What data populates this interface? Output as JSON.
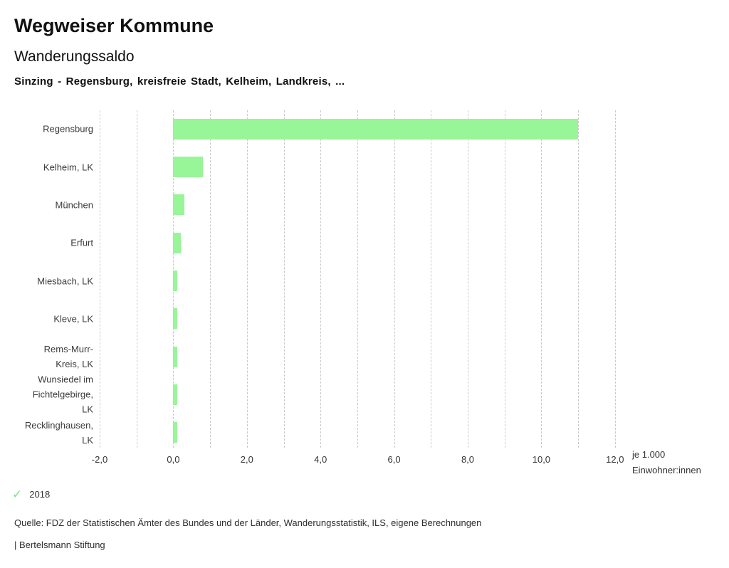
{
  "header": {
    "title": "Wegweiser Kommune",
    "subtitle": "Wanderungssaldo",
    "selection": "Sinzing - Regensburg, kreisfreie Stadt, Kelheim, Landkreis, ..."
  },
  "chart_data": {
    "type": "bar",
    "orientation": "horizontal",
    "title": "Wanderungssaldo",
    "categories": [
      "Regensburg",
      "Kelheim, LK",
      "München",
      "Erfurt",
      "Miesbach, LK",
      "Kleve, LK",
      "Rems-Murr-Kreis, LK",
      "Wunsiedel im Fichtelgebirge, LK",
      "Recklinghausen, LK"
    ],
    "category_lines": [
      [
        "Regensburg"
      ],
      [
        "Kelheim, LK"
      ],
      [
        "München"
      ],
      [
        "Erfurt"
      ],
      [
        "Miesbach, LK"
      ],
      [
        "Kleve, LK"
      ],
      [
        "Rems-Murr-",
        "Kreis, LK"
      ],
      [
        "Wunsiedel im",
        "Fichtelgebirge,",
        "LK"
      ],
      [
        "Recklinghausen,",
        "LK"
      ]
    ],
    "series": [
      {
        "name": "2018",
        "values": [
          11.0,
          0.8,
          0.3,
          0.2,
          0.1,
          0.1,
          0.1,
          0.1,
          0.1
        ]
      }
    ],
    "xlim": [
      -2,
      12
    ],
    "gridline_step": 1,
    "x_tick_values": [
      -2,
      0,
      2,
      4,
      6,
      8,
      10,
      12
    ],
    "x_ticks": [
      "-2,0",
      "0,0",
      "2,0",
      "4,0",
      "6,0",
      "8,0",
      "10,0",
      "12,0"
    ],
    "xlabel_line1": "je 1.000",
    "xlabel_line2": "Einwohner:innen",
    "grid": true,
    "legend_position": "bottom-left",
    "bar_color": "#98f598"
  },
  "legend": {
    "check_icon": "✓",
    "check_color": "#85e08d",
    "year_label": "2018"
  },
  "source": "Quelle: FDZ der Statistischen Ämter des Bundes und der Länder, Wanderungsstatistik, ILS, eigene Berechnungen",
  "footer": "| Bertelsmann Stiftung"
}
